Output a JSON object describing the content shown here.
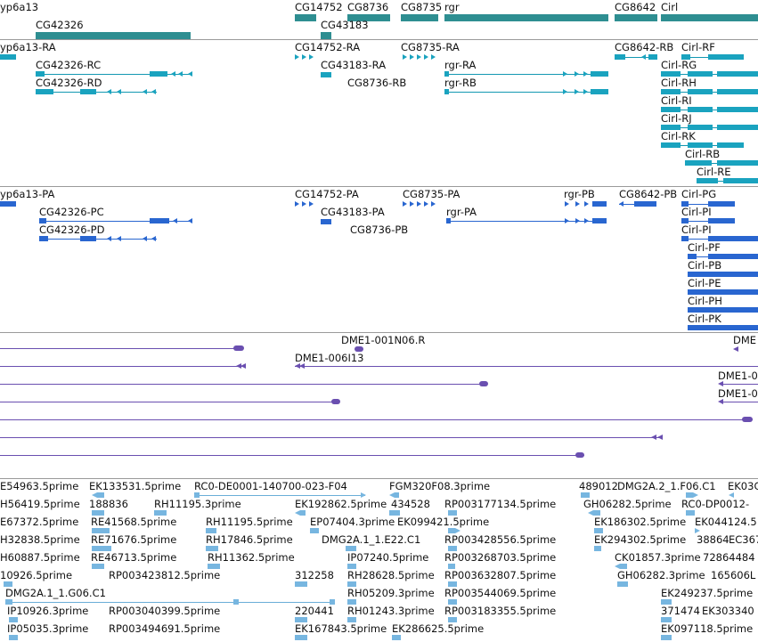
{
  "genes": {
    "cyp6a13": "yp6a13",
    "cg42326": "CG42326",
    "cg14752": "CG14752",
    "cg8736": "CG8736",
    "cg43183": "CG43183",
    "cg8735": "CG8735",
    "rgr": "rgr",
    "cg8642": "CG8642",
    "cirl": "Cirl"
  },
  "transcripts": {
    "cyp_ra": "yp6a13-RA",
    "cg42326_rc": "CG42326-RC",
    "cg42326_rd": "CG42326-RD",
    "cg14752_ra": "CG14752-RA",
    "cg43183_ra": "CG43183-RA",
    "cg8736_rb": "CG8736-RB",
    "cg8735_ra": "CG8735-RA",
    "rgr_ra": "rgr-RA",
    "rgr_rb": "rgr-RB",
    "cg8642_rb": "CG8642-RB",
    "cirl_rf": "Cirl-RF",
    "cirl_rg": "Cirl-RG",
    "cirl_rh": "Cirl-RH",
    "cirl_ri": "Cirl-RI",
    "cirl_rj": "Cirl-RJ",
    "cirl_rk": "Cirl-RK",
    "cirl_rb": "Cirl-RB",
    "cirl_re": "Cirl-RE"
  },
  "proteins": {
    "cyp_pa": "yp6a13-PA",
    "cg42326_pc": "CG42326-PC",
    "cg42326_pd": "CG42326-PD",
    "cg14752_pa": "CG14752-PA",
    "cg43183_pa": "CG43183-PA",
    "cg8736_pb": "CG8736-PB",
    "cg8735_pa": "CG8735-PA",
    "rgr_pa": "rgr-PA",
    "rgr_pb": "rgr-PB",
    "cg8642_pb": "CG8642-PB",
    "cirl_pg": "Cirl-PG",
    "cirl_pi1": "Cirl-PI",
    "cirl_pi2": "Cirl-PI",
    "cirl_pf": "Cirl-PF",
    "cirl_pb": "Cirl-PB",
    "cirl_pe": "Cirl-PE",
    "cirl_ph": "Cirl-PH",
    "cirl_pk": "Cirl-PK"
  },
  "clones": {
    "n06r": "DME1-001N06.R",
    "i13": "DME1-006I13",
    "dme_a": "DME",
    "dme_b": "DME1-0",
    "dme_c": "DME1-0"
  },
  "ests": [
    [
      "E54963.5prime",
      "EK133531.5prime",
      "RC0-DE0001-140700-023-F04",
      "FGM320F08.3prime",
      "489012",
      "DMG2A.2_1.F06.C1",
      "EK03C"
    ],
    [
      "H56419.5prime",
      "188836",
      "RH11195.3prime",
      "EK192862.5prime",
      "434528",
      "RP003177134.5prime",
      "GH06282.5prime",
      "RC0-DP0012-"
    ],
    [
      "E67372.5prime",
      "RE41568.5prime",
      "RH11195.5prime",
      "EP07404.3prime",
      "EK099421.5prime",
      "EK186302.5prime",
      "EK044124.5"
    ],
    [
      "H32838.5prime",
      "RE71676.5prime",
      "RH17846.5prime",
      "DMG2A.1_1.E22.C1",
      "RP003428556.5prime",
      "EK294302.5prime",
      "38864",
      "EC367"
    ],
    [
      "H60887.5prime",
      "RE46713.5prime",
      "RH11362.5prime",
      "IP07240.5prime",
      "RP003268703.5prime",
      "CK01857.3prime",
      "72864484"
    ],
    [
      "10926.5prime",
      "RP003423812.5prime",
      "312258",
      "RH28628.5prime",
      "RP003632807.5prime",
      "GH06282.3prime",
      "165606L"
    ],
    [
      "DMG2A.1_1.G06.C1",
      "RH05209.3prime",
      "RP003544069.5prime",
      "EK249237.5prime"
    ],
    [
      "IP10926.3prime",
      "RP003040399.5prime",
      "220441",
      "RH01243.3prime",
      "RP003183355.5prime",
      "371474",
      "EK303340"
    ],
    [
      "IP05035.3prime",
      "RP003494691.5prime",
      "EK167843.5prime",
      "EK286625.5prime",
      "EK097118.5prime"
    ]
  ],
  "colors": {
    "gene": "#2e8e91",
    "transcript": "#1aa3bf",
    "protein": "#2966d0",
    "clone": "#6a4fb0",
    "est": "#77b6e0"
  }
}
